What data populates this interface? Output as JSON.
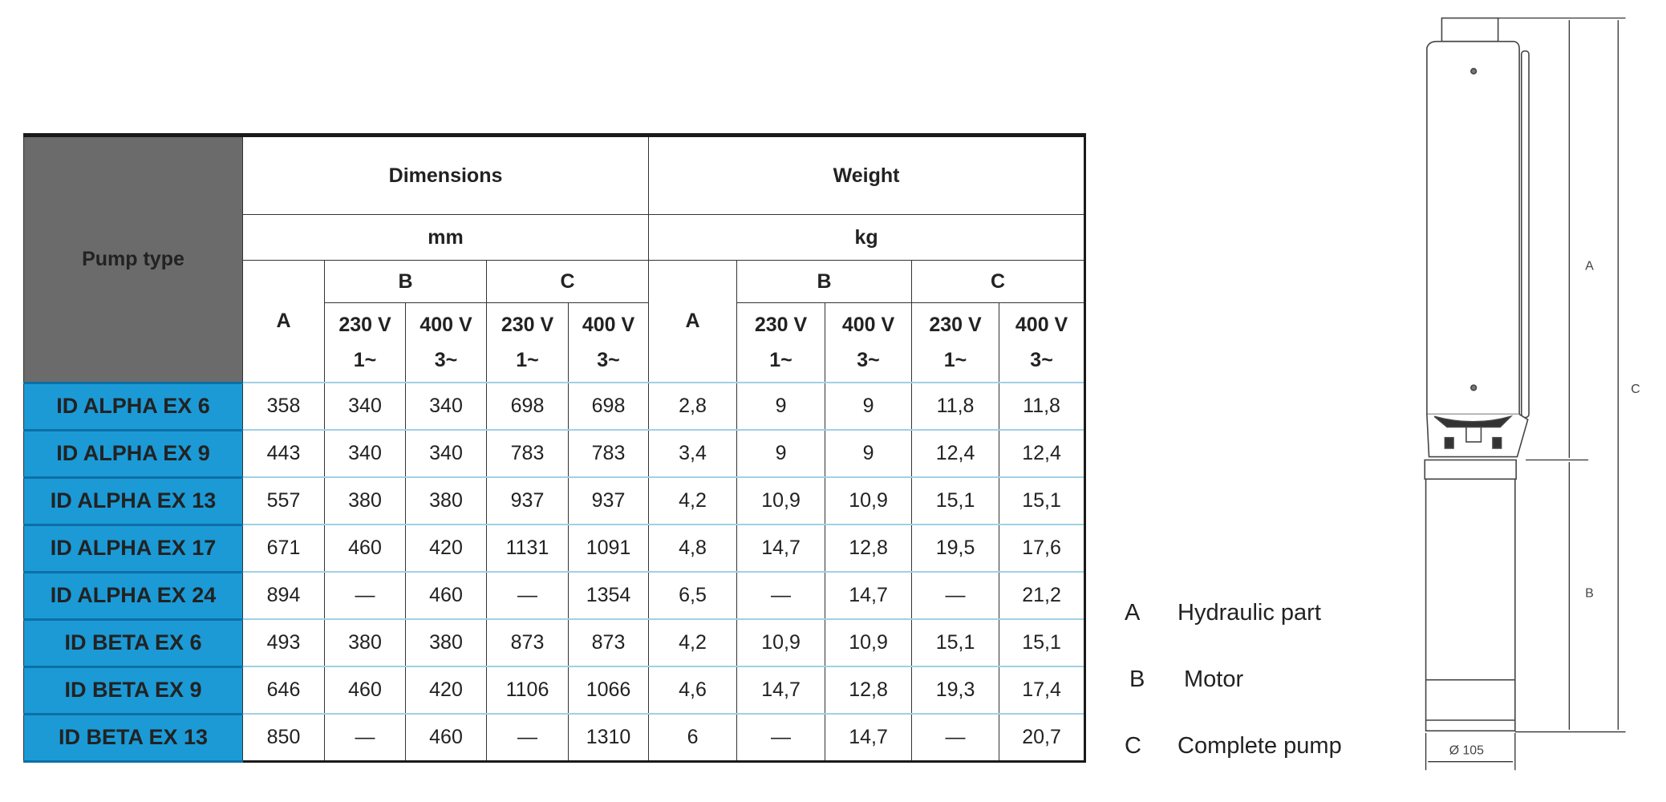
{
  "table": {
    "pump_type_header": "Pump type",
    "dimensions_header": "Dimensions",
    "weight_header": "Weight",
    "dimensions_unit": "mm",
    "weight_unit": "kg",
    "col_a": "A",
    "col_b": "B",
    "col_c": "C",
    "v230": "230 V",
    "v230_phase": "1~",
    "v400": "400 V",
    "v400_phase": "3~",
    "rows": [
      {
        "name": "ID ALPHA EX 6",
        "values": [
          "358",
          "340",
          "340",
          "698",
          "698",
          "2,8",
          "9",
          "9",
          "11,8",
          "11,8"
        ]
      },
      {
        "name": "ID ALPHA EX 9",
        "values": [
          "443",
          "340",
          "340",
          "783",
          "783",
          "3,4",
          "9",
          "9",
          "12,4",
          "12,4"
        ]
      },
      {
        "name": "ID ALPHA EX 13",
        "values": [
          "557",
          "380",
          "380",
          "937",
          "937",
          "4,2",
          "10,9",
          "10,9",
          "15,1",
          "15,1"
        ]
      },
      {
        "name": "ID ALPHA EX 17",
        "values": [
          "671",
          "460",
          "420",
          "1131",
          "1091",
          "4,8",
          "14,7",
          "12,8",
          "19,5",
          "17,6"
        ]
      },
      {
        "name": "ID ALPHA EX 24",
        "values": [
          "894",
          "—",
          "460",
          "—",
          "1354",
          "6,5",
          "—",
          "14,7",
          "—",
          "21,2"
        ]
      },
      {
        "name": "ID BETA EX 6",
        "values": [
          "493",
          "380",
          "380",
          "873",
          "873",
          "4,2",
          "10,9",
          "10,9",
          "15,1",
          "15,1"
        ]
      },
      {
        "name": "ID BETA EX 9",
        "values": [
          "646",
          "460",
          "420",
          "1106",
          "1066",
          "4,6",
          "14,7",
          "12,8",
          "19,3",
          "17,4"
        ]
      },
      {
        "name": "ID BETA EX 13",
        "values": [
          "850",
          "—",
          "460",
          "—",
          "1310",
          "6",
          "—",
          "14,7",
          "—",
          "20,7"
        ]
      }
    ]
  },
  "legend": [
    {
      "letter": "A",
      "text": "Hydraulic part"
    },
    {
      "letter": "B",
      "text": "Motor"
    },
    {
      "letter": "C",
      "text": "Complete pump"
    }
  ],
  "drawing": {
    "label_a": "A",
    "label_b": "B",
    "label_c": "C",
    "diameter": "Ø 105"
  },
  "colors": {
    "pump_name_bg": "#1b9ad6",
    "header_bg": "#6b6b6b"
  }
}
